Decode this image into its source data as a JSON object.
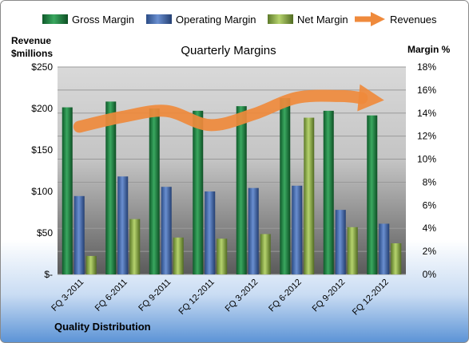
{
  "chart_data": {
    "type": "bar",
    "title": "Quarterly Margins",
    "footer": "Quality Distribution",
    "ylabel_left_line1": "Revenue",
    "ylabel_left_line2": "$millions",
    "ylabel_right": "Margin %",
    "categories": [
      "FQ 3-2011",
      "FQ 6-2011",
      "FQ 9-2011",
      "FQ 12-2011",
      "FQ 3-2012",
      "FQ 6-2012",
      "FQ 9-2012",
      "FQ 12-2012"
    ],
    "ylim_left": [
      0,
      250
    ],
    "ylim_right": [
      0,
      18
    ],
    "left_ticks": [
      "$-",
      "$50",
      "$100",
      "$150",
      "$200",
      "$250"
    ],
    "right_ticks": [
      "0%",
      "2%",
      "4%",
      "6%",
      "8%",
      "10%",
      "12%",
      "14%",
      "16%",
      "18%"
    ],
    "series": [
      {
        "name": "Gross Margin",
        "axis": "right",
        "color": "#2e8b4e",
        "values": [
          14.5,
          15.0,
          14.4,
          14.2,
          14.6,
          15.3,
          14.2,
          13.8
        ]
      },
      {
        "name": "Operating Margin",
        "axis": "right",
        "color": "#4f74b8",
        "values": [
          6.8,
          8.5,
          7.6,
          7.2,
          7.5,
          7.7,
          5.6,
          4.4
        ]
      },
      {
        "name": "Net Margin",
        "axis": "right",
        "color": "#9bbb59",
        "values": [
          1.6,
          4.8,
          3.2,
          3.1,
          3.5,
          13.6,
          4.1,
          2.7
        ]
      },
      {
        "name": "Revenues",
        "axis": "left",
        "color": "#ef8a3c",
        "type": "arrow-line",
        "values": [
          178,
          190,
          197,
          180,
          193,
          213,
          215,
          210
        ]
      }
    ],
    "legend_position": "top",
    "grid": true
  }
}
